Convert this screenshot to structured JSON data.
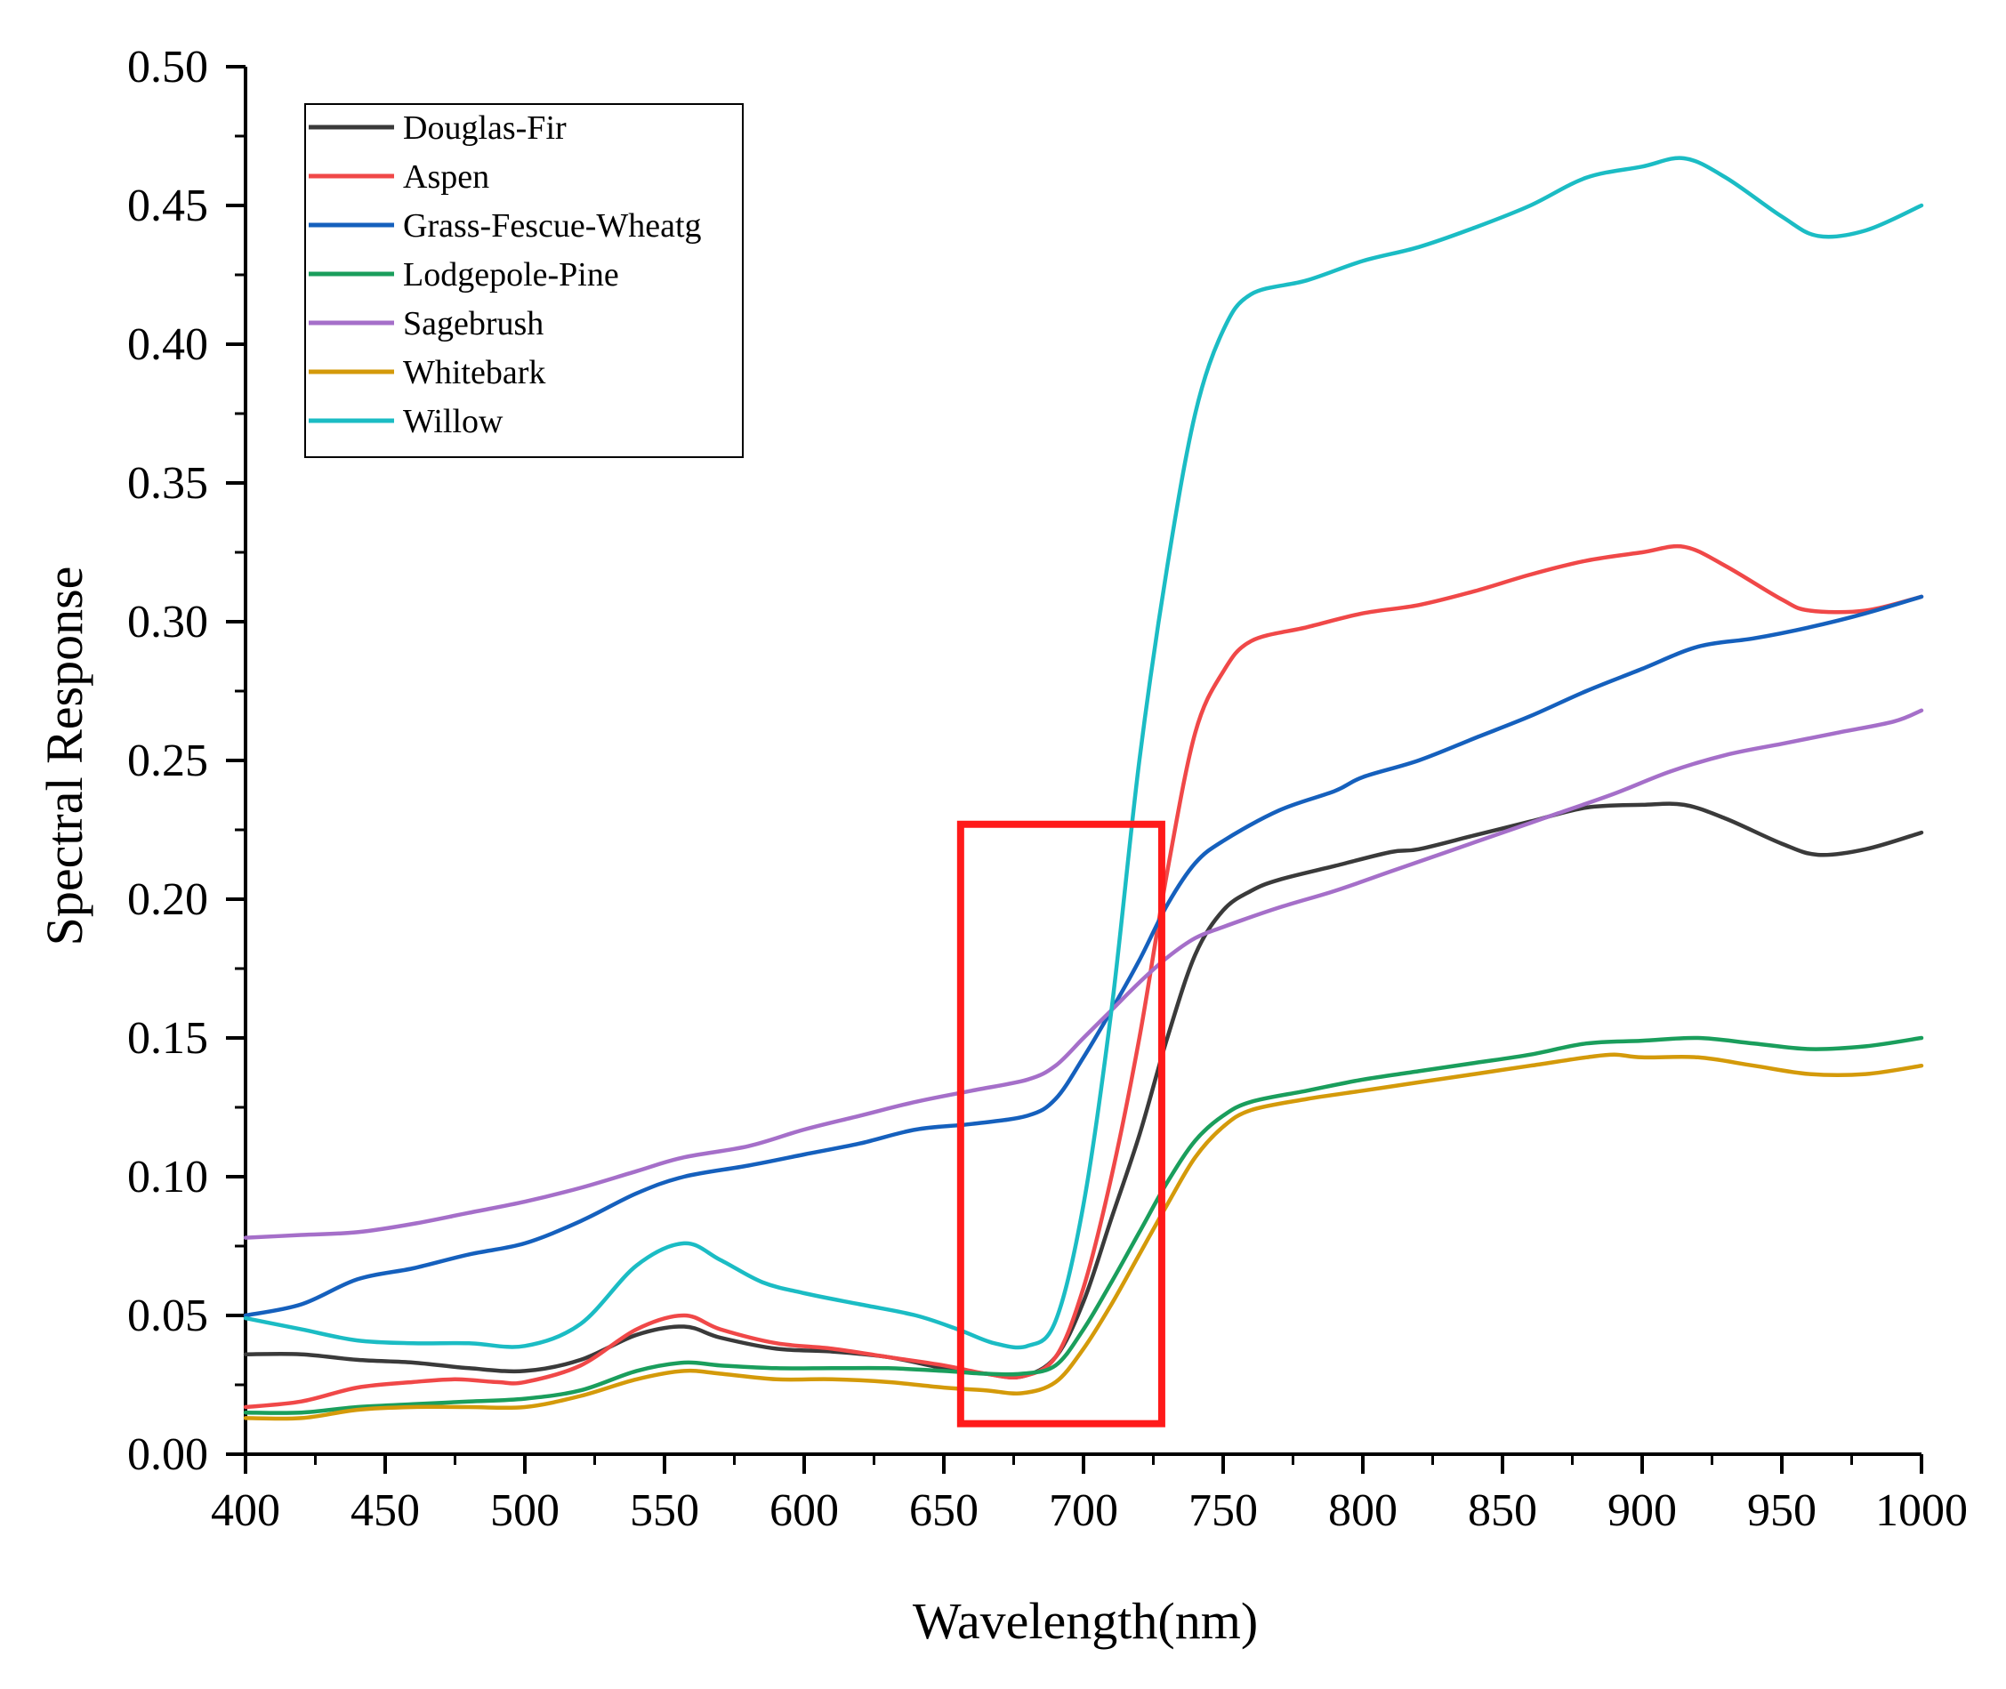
{
  "chart_data": {
    "type": "line",
    "title": "",
    "xlabel": "Wavelength(nm)",
    "ylabel": "Spectral Response",
    "xlim": [
      400,
      1000
    ],
    "ylim": [
      0.0,
      0.5
    ],
    "x_ticks": [
      400,
      450,
      500,
      550,
      600,
      650,
      700,
      750,
      800,
      850,
      900,
      950,
      1000
    ],
    "y_ticks": [
      "0.00",
      "0.05",
      "0.10",
      "0.15",
      "0.20",
      "0.25",
      "0.30",
      "0.35",
      "0.40",
      "0.45",
      "0.50"
    ],
    "legend_position": "top-left",
    "highlight_box": {
      "x_range": [
        656,
        728
      ],
      "y_range": [
        0.011,
        0.227
      ],
      "color": "#ff1a1a"
    },
    "series": [
      {
        "name": "Douglas-Fir",
        "color": "#3a3a3a",
        "points": [
          [
            400,
            0.036
          ],
          [
            420,
            0.036
          ],
          [
            440,
            0.034
          ],
          [
            460,
            0.033
          ],
          [
            480,
            0.031
          ],
          [
            500,
            0.03
          ],
          [
            520,
            0.034
          ],
          [
            540,
            0.043
          ],
          [
            557,
            0.046
          ],
          [
            570,
            0.042
          ],
          [
            590,
            0.038
          ],
          [
            610,
            0.037
          ],
          [
            630,
            0.035
          ],
          [
            650,
            0.031
          ],
          [
            665,
            0.029
          ],
          [
            678,
            0.028
          ],
          [
            690,
            0.035
          ],
          [
            700,
            0.055
          ],
          [
            710,
            0.085
          ],
          [
            720,
            0.115
          ],
          [
            730,
            0.15
          ],
          [
            740,
            0.18
          ],
          [
            750,
            0.196
          ],
          [
            760,
            0.203
          ],
          [
            770,
            0.207
          ],
          [
            790,
            0.212
          ],
          [
            810,
            0.217
          ],
          [
            820,
            0.218
          ],
          [
            840,
            0.223
          ],
          [
            860,
            0.228
          ],
          [
            880,
            0.233
          ],
          [
            900,
            0.234
          ],
          [
            915,
            0.234
          ],
          [
            930,
            0.229
          ],
          [
            950,
            0.22
          ],
          [
            963,
            0.216
          ],
          [
            980,
            0.218
          ],
          [
            1000,
            0.224
          ]
        ]
      },
      {
        "name": "Aspen",
        "color": "#f04848",
        "points": [
          [
            400,
            0.017
          ],
          [
            420,
            0.019
          ],
          [
            440,
            0.024
          ],
          [
            460,
            0.026
          ],
          [
            475,
            0.027
          ],
          [
            490,
            0.026
          ],
          [
            500,
            0.026
          ],
          [
            520,
            0.032
          ],
          [
            540,
            0.045
          ],
          [
            557,
            0.05
          ],
          [
            570,
            0.045
          ],
          [
            590,
            0.04
          ],
          [
            610,
            0.038
          ],
          [
            630,
            0.035
          ],
          [
            650,
            0.032
          ],
          [
            665,
            0.029
          ],
          [
            678,
            0.028
          ],
          [
            690,
            0.035
          ],
          [
            700,
            0.06
          ],
          [
            710,
            0.1
          ],
          [
            720,
            0.15
          ],
          [
            730,
            0.21
          ],
          [
            740,
            0.26
          ],
          [
            750,
            0.282
          ],
          [
            760,
            0.293
          ],
          [
            780,
            0.298
          ],
          [
            800,
            0.303
          ],
          [
            820,
            0.306
          ],
          [
            840,
            0.311
          ],
          [
            860,
            0.317
          ],
          [
            880,
            0.322
          ],
          [
            900,
            0.325
          ],
          [
            915,
            0.327
          ],
          [
            930,
            0.32
          ],
          [
            950,
            0.308
          ],
          [
            960,
            0.304
          ],
          [
            980,
            0.304
          ],
          [
            1000,
            0.309
          ]
        ]
      },
      {
        "name": "Grass-Fescue-Wheatg",
        "color": "#1560bd",
        "points": [
          [
            400,
            0.05
          ],
          [
            420,
            0.054
          ],
          [
            440,
            0.063
          ],
          [
            460,
            0.067
          ],
          [
            480,
            0.072
          ],
          [
            500,
            0.076
          ],
          [
            520,
            0.084
          ],
          [
            540,
            0.094
          ],
          [
            557,
            0.1
          ],
          [
            580,
            0.104
          ],
          [
            600,
            0.108
          ],
          [
            620,
            0.112
          ],
          [
            640,
            0.117
          ],
          [
            660,
            0.119
          ],
          [
            680,
            0.122
          ],
          [
            690,
            0.128
          ],
          [
            700,
            0.143
          ],
          [
            710,
            0.16
          ],
          [
            720,
            0.178
          ],
          [
            730,
            0.198
          ],
          [
            740,
            0.213
          ],
          [
            750,
            0.221
          ],
          [
            770,
            0.232
          ],
          [
            790,
            0.239
          ],
          [
            800,
            0.244
          ],
          [
            820,
            0.25
          ],
          [
            840,
            0.258
          ],
          [
            860,
            0.266
          ],
          [
            880,
            0.275
          ],
          [
            900,
            0.283
          ],
          [
            920,
            0.291
          ],
          [
            940,
            0.294
          ],
          [
            960,
            0.298
          ],
          [
            980,
            0.303
          ],
          [
            1000,
            0.309
          ]
        ]
      },
      {
        "name": "Lodgepole-Pine",
        "color": "#1a9e5c",
        "points": [
          [
            400,
            0.015
          ],
          [
            420,
            0.015
          ],
          [
            440,
            0.017
          ],
          [
            460,
            0.018
          ],
          [
            480,
            0.019
          ],
          [
            500,
            0.02
          ],
          [
            520,
            0.023
          ],
          [
            540,
            0.03
          ],
          [
            557,
            0.033
          ],
          [
            570,
            0.032
          ],
          [
            590,
            0.031
          ],
          [
            610,
            0.031
          ],
          [
            630,
            0.031
          ],
          [
            650,
            0.03
          ],
          [
            665,
            0.029
          ],
          [
            678,
            0.029
          ],
          [
            690,
            0.032
          ],
          [
            700,
            0.045
          ],
          [
            710,
            0.062
          ],
          [
            720,
            0.08
          ],
          [
            730,
            0.098
          ],
          [
            740,
            0.113
          ],
          [
            750,
            0.122
          ],
          [
            760,
            0.127
          ],
          [
            780,
            0.131
          ],
          [
            800,
            0.135
          ],
          [
            820,
            0.138
          ],
          [
            840,
            0.141
          ],
          [
            860,
            0.144
          ],
          [
            880,
            0.148
          ],
          [
            900,
            0.149
          ],
          [
            920,
            0.15
          ],
          [
            940,
            0.148
          ],
          [
            960,
            0.146
          ],
          [
            980,
            0.147
          ],
          [
            1000,
            0.15
          ]
        ]
      },
      {
        "name": "Sagebrush",
        "color": "#a56fc9",
        "points": [
          [
            400,
            0.078
          ],
          [
            420,
            0.079
          ],
          [
            440,
            0.08
          ],
          [
            460,
            0.083
          ],
          [
            480,
            0.087
          ],
          [
            500,
            0.091
          ],
          [
            520,
            0.096
          ],
          [
            540,
            0.102
          ],
          [
            557,
            0.107
          ],
          [
            580,
            0.111
          ],
          [
            600,
            0.117
          ],
          [
            620,
            0.122
          ],
          [
            640,
            0.127
          ],
          [
            660,
            0.131
          ],
          [
            680,
            0.135
          ],
          [
            690,
            0.14
          ],
          [
            700,
            0.15
          ],
          [
            710,
            0.16
          ],
          [
            720,
            0.17
          ],
          [
            730,
            0.179
          ],
          [
            740,
            0.186
          ],
          [
            750,
            0.19
          ],
          [
            770,
            0.197
          ],
          [
            790,
            0.203
          ],
          [
            810,
            0.21
          ],
          [
            830,
            0.217
          ],
          [
            850,
            0.224
          ],
          [
            870,
            0.231
          ],
          [
            890,
            0.238
          ],
          [
            910,
            0.246
          ],
          [
            930,
            0.252
          ],
          [
            950,
            0.256
          ],
          [
            970,
            0.26
          ],
          [
            990,
            0.264
          ],
          [
            1000,
            0.268
          ]
        ]
      },
      {
        "name": "Whitebark",
        "color": "#d49a0a",
        "points": [
          [
            400,
            0.013
          ],
          [
            420,
            0.013
          ],
          [
            440,
            0.016
          ],
          [
            460,
            0.017
          ],
          [
            480,
            0.017
          ],
          [
            500,
            0.017
          ],
          [
            520,
            0.021
          ],
          [
            540,
            0.027
          ],
          [
            557,
            0.03
          ],
          [
            570,
            0.029
          ],
          [
            590,
            0.027
          ],
          [
            610,
            0.027
          ],
          [
            630,
            0.026
          ],
          [
            650,
            0.024
          ],
          [
            665,
            0.023
          ],
          [
            678,
            0.022
          ],
          [
            690,
            0.026
          ],
          [
            700,
            0.038
          ],
          [
            710,
            0.054
          ],
          [
            720,
            0.072
          ],
          [
            730,
            0.09
          ],
          [
            740,
            0.107
          ],
          [
            750,
            0.118
          ],
          [
            760,
            0.124
          ],
          [
            780,
            0.128
          ],
          [
            800,
            0.131
          ],
          [
            820,
            0.134
          ],
          [
            840,
            0.137
          ],
          [
            860,
            0.14
          ],
          [
            880,
            0.143
          ],
          [
            890,
            0.144
          ],
          [
            900,
            0.143
          ],
          [
            920,
            0.143
          ],
          [
            940,
            0.14
          ],
          [
            960,
            0.137
          ],
          [
            980,
            0.137
          ],
          [
            1000,
            0.14
          ]
        ]
      },
      {
        "name": "Willow",
        "color": "#1bbcc4",
        "points": [
          [
            400,
            0.049
          ],
          [
            420,
            0.045
          ],
          [
            440,
            0.041
          ],
          [
            460,
            0.04
          ],
          [
            480,
            0.04
          ],
          [
            500,
            0.039
          ],
          [
            520,
            0.047
          ],
          [
            540,
            0.068
          ],
          [
            557,
            0.076
          ],
          [
            570,
            0.07
          ],
          [
            585,
            0.062
          ],
          [
            600,
            0.058
          ],
          [
            620,
            0.054
          ],
          [
            640,
            0.05
          ],
          [
            655,
            0.045
          ],
          [
            668,
            0.04
          ],
          [
            680,
            0.039
          ],
          [
            690,
            0.048
          ],
          [
            700,
            0.09
          ],
          [
            710,
            0.16
          ],
          [
            720,
            0.25
          ],
          [
            730,
            0.32
          ],
          [
            740,
            0.375
          ],
          [
            750,
            0.405
          ],
          [
            760,
            0.418
          ],
          [
            780,
            0.423
          ],
          [
            800,
            0.43
          ],
          [
            820,
            0.435
          ],
          [
            840,
            0.442
          ],
          [
            860,
            0.45
          ],
          [
            880,
            0.46
          ],
          [
            900,
            0.464
          ],
          [
            915,
            0.467
          ],
          [
            930,
            0.46
          ],
          [
            950,
            0.446
          ],
          [
            963,
            0.439
          ],
          [
            980,
            0.441
          ],
          [
            1000,
            0.45
          ]
        ]
      }
    ]
  }
}
